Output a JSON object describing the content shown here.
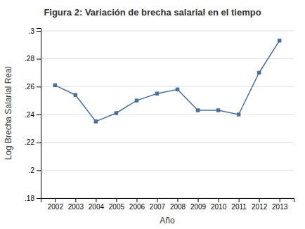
{
  "chart_data": {
    "type": "line",
    "title": "Figura 2: Variación de brecha salarial en el tiempo",
    "xlabel": "Año",
    "ylabel": "Log Brecha Salarial Real",
    "x": [
      2002,
      2003,
      2004,
      2005,
      2006,
      2007,
      2008,
      2009,
      2010,
      2011,
      2012,
      2013
    ],
    "values": [
      0.261,
      0.254,
      0.235,
      0.241,
      0.25,
      0.255,
      0.258,
      0.243,
      0.243,
      0.24,
      0.27,
      0.293
    ],
    "color": "#4a6f9e",
    "marker": "square",
    "xlim": [
      2001.3,
      2013.7
    ],
    "xticks": [
      2002,
      2003,
      2004,
      2005,
      2006,
      2007,
      2008,
      2009,
      2010,
      2011,
      2012,
      2013
    ],
    "ylim": [
      0.18,
      0.302
    ],
    "yticks": [
      {
        "value": 0.18,
        "label": ".18"
      },
      {
        "value": 0.2,
        "label": ".2"
      },
      {
        "value": 0.22,
        "label": ".22"
      },
      {
        "value": 0.24,
        "label": ".24"
      },
      {
        "value": 0.26,
        "label": ".26"
      },
      {
        "value": 0.28,
        "label": ".28"
      },
      {
        "value": 0.3,
        "label": ".3"
      }
    ],
    "grid": "y"
  }
}
